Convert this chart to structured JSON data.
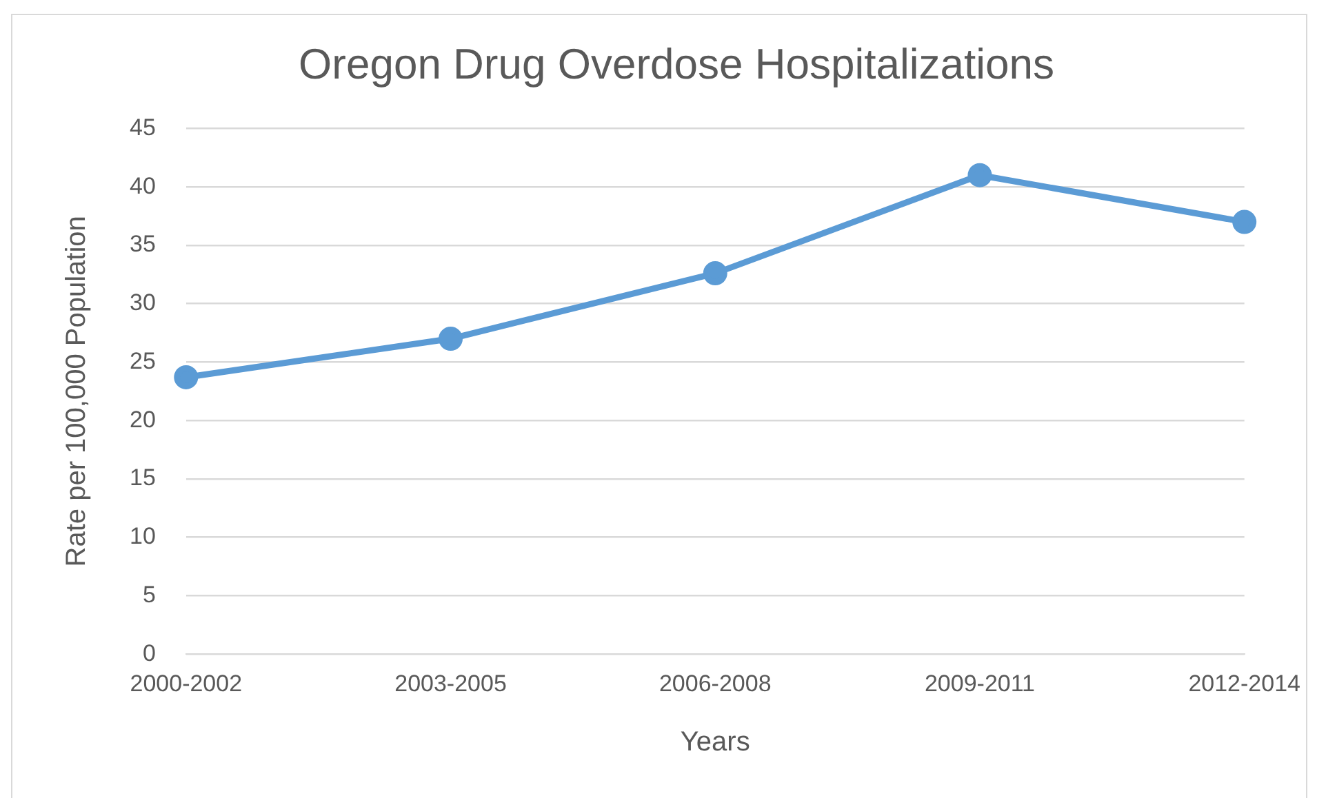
{
  "chart_data": {
    "type": "line",
    "title": "Oregon Drug Overdose Hospitalizations",
    "xlabel": "Years",
    "ylabel": "Rate per 100,000 Population",
    "categories": [
      "2000-2002",
      "2003-2005",
      "2006-2008",
      "2009-2011",
      "2012-2014"
    ],
    "series": [
      {
        "color": "#5b9bd5",
        "values": [
          23.7,
          27,
          32.6,
          41,
          37
        ]
      }
    ],
    "ylim": [
      0,
      45
    ],
    "yticks": [
      0,
      5,
      10,
      15,
      20,
      25,
      30,
      35,
      40,
      45
    ],
    "grid": "y",
    "legend": false,
    "marker": "circle",
    "line_style": "solid"
  }
}
